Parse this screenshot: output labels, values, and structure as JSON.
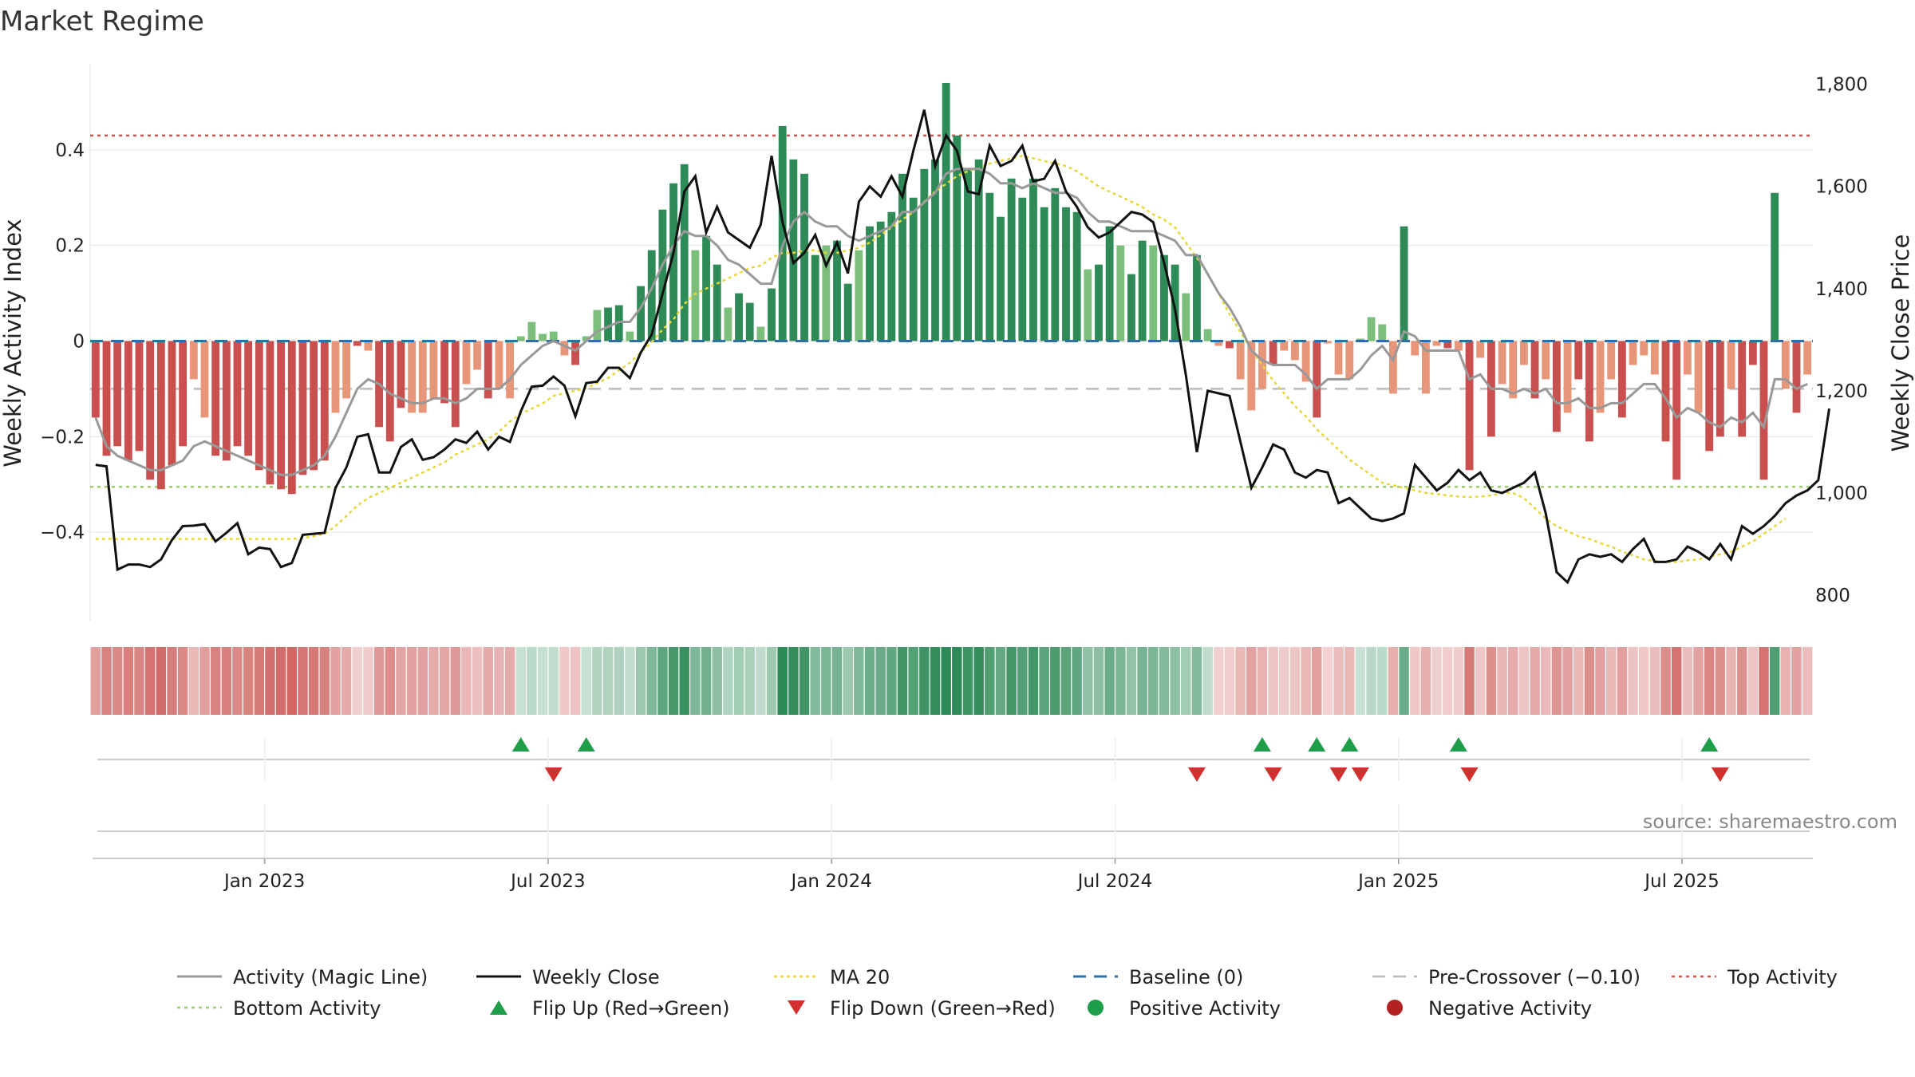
{
  "chart_data": {
    "type": "bar",
    "title": "Market Regime",
    "ylabel_left": "Weekly Activity Index",
    "ylabel_right": "Weekly Close Price",
    "y_left_ticks": [
      "0.4",
      "0.2",
      "0",
      "−0.2",
      "−0.4"
    ],
    "y_left_tick_values": [
      0.4,
      0.2,
      0,
      -0.2,
      -0.4
    ],
    "y_right_ticks": [
      "1,800",
      "1,600",
      "1,400",
      "1,200",
      "1,000",
      "800"
    ],
    "y_right_tick_values": [
      1800,
      1600,
      1400,
      1200,
      1000,
      800
    ],
    "ylim_left": [
      -0.585,
      0.58
    ],
    "ylim_right": [
      750,
      1840
    ],
    "x_ticks": [
      "Jan 2023",
      "Jul 2023",
      "Jan 2024",
      "Jul 2024",
      "Jan 2025",
      "Jul 2025"
    ],
    "x_tick_weeks": [
      15.5,
      41.5,
      67.5,
      93.5,
      119.5,
      145.5
    ],
    "weeks": 158,
    "thresholds": {
      "top": 0.43,
      "bottom": -0.305,
      "pre_crossover": -0.1,
      "baseline": 0
    },
    "activity": [
      -0.16,
      -0.24,
      -0.22,
      -0.25,
      -0.23,
      -0.29,
      -0.31,
      -0.26,
      -0.22,
      -0.08,
      -0.16,
      -0.24,
      -0.25,
      -0.22,
      -0.24,
      -0.27,
      -0.3,
      -0.31,
      -0.32,
      -0.28,
      -0.27,
      -0.25,
      -0.15,
      -0.12,
      -0.01,
      -0.02,
      -0.18,
      -0.21,
      -0.14,
      -0.15,
      -0.15,
      -0.12,
      -0.13,
      -0.18,
      -0.09,
      -0.06,
      -0.12,
      -0.1,
      -0.12,
      0.01,
      0.04,
      0.015,
      0.02,
      -0.03,
      -0.05,
      0.01,
      0.065,
      0.07,
      0.075,
      0.02,
      0.115,
      0.19,
      0.275,
      0.33,
      0.37,
      0.19,
      0.22,
      0.16,
      0.07,
      0.1,
      0.08,
      0.03,
      0.11,
      0.45,
      0.38,
      0.35,
      0.18,
      0.2,
      0.21,
      0.12,
      0.19,
      0.24,
      0.25,
      0.27,
      0.35,
      0.3,
      0.36,
      0.38,
      0.54,
      0.43,
      0.36,
      0.38,
      0.31,
      0.26,
      0.34,
      0.3,
      0.34,
      0.28,
      0.32,
      0.28,
      0.27,
      0.15,
      0.16,
      0.24,
      0.2,
      0.14,
      0.21,
      0.2,
      0.18,
      0.16,
      0.1,
      0.18,
      0.025,
      -0.01,
      -0.015,
      -0.08,
      -0.145,
      -0.1,
      -0.05,
      -0.02,
      -0.04,
      -0.085,
      -0.16,
      -0.005,
      -0.07,
      -0.08,
      0.005,
      0.05,
      0.035,
      -0.11,
      0.24,
      -0.03,
      -0.11,
      -0.01,
      -0.015,
      -0.02,
      -0.27,
      -0.035,
      -0.2,
      -0.09,
      -0.12,
      -0.05,
      -0.12,
      -0.08,
      -0.19,
      -0.15,
      -0.08,
      -0.21,
      -0.15,
      -0.08,
      -0.16,
      -0.05,
      -0.03,
      -0.07,
      -0.21,
      -0.29,
      -0.07,
      -0.15,
      -0.23,
      -0.2,
      -0.1,
      -0.2,
      -0.05,
      -0.29,
      0.31,
      -0.1,
      -0.15,
      -0.07
    ],
    "magic_line": [
      -0.16,
      -0.22,
      -0.24,
      -0.25,
      -0.26,
      -0.27,
      -0.27,
      -0.26,
      -0.25,
      -0.22,
      -0.21,
      -0.22,
      -0.23,
      -0.24,
      -0.25,
      -0.26,
      -0.27,
      -0.28,
      -0.28,
      -0.27,
      -0.26,
      -0.24,
      -0.2,
      -0.15,
      -0.1,
      -0.08,
      -0.09,
      -0.11,
      -0.12,
      -0.13,
      -0.13,
      -0.12,
      -0.12,
      -0.13,
      -0.12,
      -0.1,
      -0.1,
      -0.1,
      -0.08,
      -0.05,
      -0.03,
      -0.01,
      0.0,
      -0.01,
      -0.02,
      0.0,
      0.02,
      0.03,
      0.04,
      0.04,
      0.07,
      0.11,
      0.16,
      0.2,
      0.23,
      0.22,
      0.22,
      0.2,
      0.17,
      0.16,
      0.14,
      0.12,
      0.12,
      0.2,
      0.25,
      0.27,
      0.25,
      0.24,
      0.24,
      0.22,
      0.21,
      0.22,
      0.23,
      0.24,
      0.27,
      0.27,
      0.29,
      0.31,
      0.35,
      0.36,
      0.36,
      0.36,
      0.35,
      0.33,
      0.33,
      0.32,
      0.33,
      0.32,
      0.31,
      0.31,
      0.3,
      0.27,
      0.25,
      0.25,
      0.24,
      0.23,
      0.23,
      0.23,
      0.22,
      0.21,
      0.18,
      0.18,
      0.14,
      0.1,
      0.07,
      0.03,
      -0.02,
      -0.04,
      -0.05,
      -0.05,
      -0.05,
      -0.07,
      -0.1,
      -0.08,
      -0.08,
      -0.08,
      -0.06,
      -0.03,
      -0.01,
      -0.04,
      0.02,
      0.01,
      -0.02,
      -0.02,
      -0.02,
      -0.02,
      -0.08,
      -0.07,
      -0.1,
      -0.1,
      -0.11,
      -0.1,
      -0.11,
      -0.1,
      -0.13,
      -0.13,
      -0.12,
      -0.14,
      -0.14,
      -0.13,
      -0.13,
      -0.11,
      -0.09,
      -0.09,
      -0.12,
      -0.16,
      -0.14,
      -0.15,
      -0.17,
      -0.18,
      -0.16,
      -0.17,
      -0.15,
      -0.18,
      -0.08,
      -0.08,
      -0.1,
      -0.09
    ],
    "close": [
      1055,
      1052,
      850,
      860,
      860,
      855,
      870,
      908,
      935,
      936,
      939,
      905,
      922,
      941,
      880,
      893,
      890,
      855,
      863,
      918,
      920,
      922,
      1010,
      1050,
      1110,
      1115,
      1040,
      1040,
      1090,
      1105,
      1065,
      1070,
      1085,
      1105,
      1098,
      1120,
      1085,
      1110,
      1100,
      1160,
      1208,
      1210,
      1228,
      1210,
      1150,
      1215,
      1218,
      1245,
      1245,
      1225,
      1275,
      1310,
      1390,
      1470,
      1590,
      1620,
      1510,
      1560,
      1510,
      1495,
      1480,
      1525,
      1660,
      1530,
      1450,
      1470,
      1505,
      1445,
      1490,
      1430,
      1570,
      1600,
      1580,
      1620,
      1580,
      1670,
      1750,
      1640,
      1700,
      1670,
      1590,
      1585,
      1680,
      1640,
      1650,
      1680,
      1610,
      1615,
      1650,
      1590,
      1560,
      1520,
      1500,
      1510,
      1530,
      1550,
      1545,
      1530,
      1450,
      1360,
      1230,
      1080,
      1200,
      1195,
      1190,
      1100,
      1010,
      1050,
      1095,
      1085,
      1040,
      1030,
      1045,
      1040,
      980,
      990,
      970,
      950,
      945,
      950,
      960,
      1055,
      1030,
      1005,
      1020,
      1045,
      1025,
      1040,
      1005,
      1000,
      1010,
      1020,
      1040,
      960,
      845,
      825,
      870,
      880,
      875,
      880,
      865,
      890,
      910,
      865,
      865,
      870,
      895,
      885,
      870,
      900,
      870,
      935,
      920,
      935,
      955,
      980,
      995,
      1005,
      1025,
      1165
    ],
    "ma20": [
      910,
      910,
      910,
      910,
      910,
      910,
      910,
      910,
      910,
      910,
      910,
      910,
      910,
      910,
      910,
      910,
      910,
      910,
      910,
      912,
      915,
      920,
      935,
      955,
      975,
      990,
      1000,
      1010,
      1020,
      1030,
      1040,
      1050,
      1060,
      1075,
      1085,
      1095,
      1105,
      1120,
      1140,
      1155,
      1165,
      1175,
      1190,
      1195,
      1200,
      1205,
      1215,
      1225,
      1240,
      1255,
      1275,
      1295,
      1320,
      1340,
      1370,
      1390,
      1400,
      1410,
      1420,
      1430,
      1440,
      1445,
      1460,
      1470,
      1470,
      1475,
      1475,
      1470,
      1470,
      1475,
      1480,
      1490,
      1505,
      1520,
      1535,
      1550,
      1570,
      1590,
      1605,
      1620,
      1630,
      1635,
      1645,
      1650,
      1655,
      1660,
      1655,
      1650,
      1645,
      1640,
      1630,
      1615,
      1600,
      1590,
      1580,
      1570,
      1560,
      1545,
      1535,
      1520,
      1490,
      1460,
      1430,
      1390,
      1350,
      1315,
      1280,
      1250,
      1220,
      1195,
      1170,
      1150,
      1125,
      1105,
      1085,
      1065,
      1050,
      1035,
      1020,
      1015,
      1010,
      1005,
      1000,
      998,
      995,
      993,
      992,
      993,
      995,
      1000,
      1000,
      990,
      970,
      950,
      935,
      925,
      915,
      910,
      902,
      895,
      885,
      878,
      870,
      867,
      865,
      865,
      868,
      870,
      875,
      880,
      885,
      895,
      905,
      920,
      935,
      950
    ],
    "flip_up": [
      39,
      45,
      107,
      112,
      115,
      125,
      148
    ],
    "flip_down": [
      42,
      101,
      108,
      114,
      116,
      126,
      149
    ],
    "series": [
      {
        "name": "Activity (Magic Line)"
      },
      {
        "name": "Weekly Close"
      },
      {
        "name": "MA 20"
      },
      {
        "name": "Baseline (0)"
      },
      {
        "name": "Pre-Crossover (−0.10)"
      },
      {
        "name": "Top Activity"
      },
      {
        "name": "Bottom Activity"
      },
      {
        "name": "Flip Up (Red→Green)"
      },
      {
        "name": "Flip Down (Green→Red)"
      },
      {
        "name": "Positive Activity"
      },
      {
        "name": "Negative Activity"
      }
    ],
    "legend_placement": "bottom",
    "source": "source: sharemaestro.com",
    "colors": {
      "pos_strong": "#2e8b57",
      "pos_light": "#7cbf7c",
      "neg_strong": "#c9504e",
      "neg_light": "#e8967a",
      "magic": "#999999",
      "close": "#111111",
      "ma20": "#e6d83a",
      "baseline": "#2e6fa8",
      "pre": "#bbbbbb",
      "top": "#d9534f",
      "bottom": "#9ccc65",
      "flip_up": "#1f9e4a",
      "flip_down": "#d32f2f",
      "pos_dot": "#1f9e4a",
      "neg_dot": "#b22222"
    }
  }
}
